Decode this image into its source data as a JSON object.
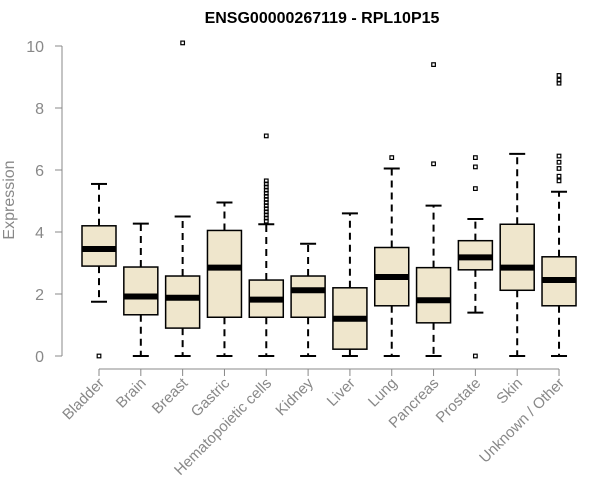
{
  "chart_data": {
    "type": "box",
    "title": "ENSG00000267119 - RPL10P15",
    "xlabel": "",
    "ylabel": "Expression",
    "ylim": [
      0,
      10
    ],
    "yticks": [
      0,
      2,
      4,
      6,
      8,
      10
    ],
    "grid": false,
    "colors": {
      "box_fill": "#efe6cc",
      "stroke": "#000000",
      "axis": "#888888"
    },
    "categories": [
      "Bladder",
      "Brain",
      "Breast",
      "Gastric",
      "Hematopoietic cells",
      "Kidney",
      "Liver",
      "Lung",
      "Pancreas",
      "Prostate",
      "Skin",
      "Unknown / Other"
    ],
    "boxes": [
      {
        "category": "Bladder",
        "whisker_low": 1.75,
        "q1": 2.9,
        "median": 3.45,
        "q3": 4.2,
        "whisker_high": 5.55,
        "outliers": [
          0.0
        ]
      },
      {
        "category": "Brain",
        "whisker_low": 0.0,
        "q1": 1.33,
        "median": 1.92,
        "q3": 2.87,
        "whisker_high": 4.27,
        "outliers": []
      },
      {
        "category": "Breast",
        "whisker_low": 0.0,
        "q1": 0.9,
        "median": 1.88,
        "q3": 2.58,
        "whisker_high": 4.5,
        "outliers": [
          10.1
        ]
      },
      {
        "category": "Gastric",
        "whisker_low": 0.0,
        "q1": 1.25,
        "median": 2.85,
        "q3": 4.05,
        "whisker_high": 4.95,
        "outliers": []
      },
      {
        "category": "Hematopoietic cells",
        "whisker_low": 0.0,
        "q1": 1.25,
        "median": 1.82,
        "q3": 2.45,
        "whisker_high": 4.25,
        "outliers": [
          4.35,
          4.45,
          4.55,
          4.65,
          4.75,
          4.85,
          4.95,
          5.05,
          5.15,
          5.25,
          5.35,
          5.45,
          5.55,
          5.65,
          7.1
        ]
      },
      {
        "category": "Kidney",
        "whisker_low": 0.0,
        "q1": 1.25,
        "median": 2.12,
        "q3": 2.58,
        "whisker_high": 3.62,
        "outliers": []
      },
      {
        "category": "Liver",
        "whisker_low": 0.0,
        "q1": 0.22,
        "median": 1.2,
        "q3": 2.2,
        "whisker_high": 4.6,
        "outliers": []
      },
      {
        "category": "Lung",
        "whisker_low": 0.0,
        "q1": 1.62,
        "median": 2.55,
        "q3": 3.5,
        "whisker_high": 6.05,
        "outliers": [
          6.4
        ]
      },
      {
        "category": "Pancreas",
        "whisker_low": 0.0,
        "q1": 1.07,
        "median": 1.8,
        "q3": 2.85,
        "whisker_high": 4.85,
        "outliers": [
          6.2,
          9.4
        ]
      },
      {
        "category": "Prostate",
        "whisker_low": 1.4,
        "q1": 2.78,
        "median": 3.18,
        "q3": 3.72,
        "whisker_high": 4.42,
        "outliers": [
          0.0,
          5.4,
          6.1,
          6.4
        ]
      },
      {
        "category": "Skin",
        "whisker_low": 0.0,
        "q1": 2.12,
        "median": 2.85,
        "q3": 4.25,
        "whisker_high": 6.52,
        "outliers": []
      },
      {
        "category": "Unknown / Other",
        "whisker_low": 0.0,
        "q1": 1.62,
        "median": 2.45,
        "q3": 3.2,
        "whisker_high": 5.3,
        "outliers": [
          5.65,
          5.8,
          6.05,
          6.25,
          6.45,
          8.8,
          8.9,
          9.05
        ]
      }
    ]
  }
}
